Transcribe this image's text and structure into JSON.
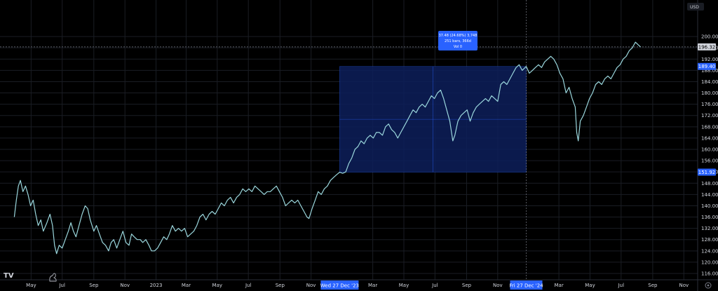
{
  "currency_label": "USD",
  "badges": {
    "last_price": "196.32",
    "range_high": "189.40",
    "range_low": "151.92",
    "range_start_date": "Wed 27 Dec '23",
    "range_end_date": "Fri 27 Dec '24"
  },
  "measure_tooltip": {
    "line1": "37.48 (24.68%) 3,748",
    "line2": "251 bars, 366d",
    "line3": "Vol 0"
  },
  "brand": "TV",
  "colors": {
    "background": "#000000",
    "line": "#9ad6dc",
    "range_fill": "#0d1f5a",
    "accent": "#2962ff",
    "grid": "#1a1d24"
  },
  "chart_data": {
    "type": "line",
    "title": "",
    "xlabel": "",
    "ylabel": "",
    "ylim": [
      116,
      204
    ],
    "yticks": [
      200,
      196,
      192,
      188,
      184,
      180,
      176,
      172,
      168,
      164,
      160,
      156,
      152,
      148,
      144,
      140,
      136,
      132,
      128,
      124,
      120,
      116
    ],
    "xlim": [
      "2022-03-01",
      "2025-12-05"
    ],
    "xticks": [
      {
        "date": "2022-05-01",
        "label": "May"
      },
      {
        "date": "2022-07-01",
        "label": "Jul"
      },
      {
        "date": "2022-09-01",
        "label": "Sep"
      },
      {
        "date": "2022-11-01",
        "label": "Nov"
      },
      {
        "date": "2023-01-01",
        "label": "2023"
      },
      {
        "date": "2023-03-01",
        "label": "Mar"
      },
      {
        "date": "2023-05-01",
        "label": "May"
      },
      {
        "date": "2023-07-01",
        "label": "Jul"
      },
      {
        "date": "2023-09-01",
        "label": "Sep"
      },
      {
        "date": "2023-11-01",
        "label": "Nov"
      },
      {
        "date": "2024-03-01",
        "label": "Mar"
      },
      {
        "date": "2024-05-01",
        "label": "May"
      },
      {
        "date": "2024-07-01",
        "label": "Jul"
      },
      {
        "date": "2024-09-01",
        "label": "Sep"
      },
      {
        "date": "2024-11-01",
        "label": "Nov"
      },
      {
        "date": "2025-03-01",
        "label": "Mar"
      },
      {
        "date": "2025-05-01",
        "label": "May"
      },
      {
        "date": "2025-07-01",
        "label": "Jul"
      },
      {
        "date": "2025-09-01",
        "label": "Sep"
      },
      {
        "date": "2025-11-01",
        "label": "Nov"
      }
    ],
    "range": {
      "start": "2023-12-27",
      "end": "2024-12-27",
      "low": 151.92,
      "high": 189.4
    },
    "crosshair": {
      "date": "2024-12-27",
      "price": 196.32
    },
    "series": [
      {
        "points": [
          [
            "2022-03-29",
            136.0
          ],
          [
            "2022-04-02",
            142.0
          ],
          [
            "2022-04-06",
            147.0
          ],
          [
            "2022-04-10",
            149.0
          ],
          [
            "2022-04-15",
            145.0
          ],
          [
            "2022-04-20",
            147.0
          ],
          [
            "2022-04-25",
            144.0
          ],
          [
            "2022-04-30",
            140.0
          ],
          [
            "2022-05-05",
            142.0
          ],
          [
            "2022-05-10",
            137.0
          ],
          [
            "2022-05-15",
            133.0
          ],
          [
            "2022-05-20",
            135.0
          ],
          [
            "2022-05-25",
            131.0
          ],
          [
            "2022-06-01",
            134.0
          ],
          [
            "2022-06-07",
            137.0
          ],
          [
            "2022-06-12",
            133.0
          ],
          [
            "2022-06-16",
            126.0
          ],
          [
            "2022-06-20",
            123.0
          ],
          [
            "2022-06-25",
            126.0
          ],
          [
            "2022-07-01",
            125.0
          ],
          [
            "2022-07-07",
            128.0
          ],
          [
            "2022-07-13",
            131.0
          ],
          [
            "2022-07-18",
            134.0
          ],
          [
            "2022-07-23",
            131.0
          ],
          [
            "2022-07-28",
            129.0
          ],
          [
            "2022-08-03",
            133.0
          ],
          [
            "2022-08-09",
            137.0
          ],
          [
            "2022-08-15",
            140.0
          ],
          [
            "2022-08-20",
            139.0
          ],
          [
            "2022-08-25",
            135.0
          ],
          [
            "2022-09-01",
            131.0
          ],
          [
            "2022-09-06",
            133.0
          ],
          [
            "2022-09-12",
            130.0
          ],
          [
            "2022-09-18",
            127.0
          ],
          [
            "2022-09-24",
            126.0
          ],
          [
            "2022-09-30",
            124.0
          ],
          [
            "2022-10-05",
            127.0
          ],
          [
            "2022-10-10",
            128.0
          ],
          [
            "2022-10-16",
            125.0
          ],
          [
            "2022-10-22",
            128.0
          ],
          [
            "2022-10-28",
            131.0
          ],
          [
            "2022-11-03",
            127.0
          ],
          [
            "2022-11-09",
            126.0
          ],
          [
            "2022-11-14",
            130.0
          ],
          [
            "2022-11-19",
            129.0
          ],
          [
            "2022-11-25",
            128.0
          ],
          [
            "2022-12-01",
            128.0
          ],
          [
            "2022-12-06",
            127.0
          ],
          [
            "2022-12-12",
            128.0
          ],
          [
            "2022-12-18",
            126.0
          ],
          [
            "2022-12-23",
            124.0
          ],
          [
            "2022-12-29",
            124.0
          ],
          [
            "2023-01-04",
            125.0
          ],
          [
            "2023-01-10",
            127.0
          ],
          [
            "2023-01-16",
            129.0
          ],
          [
            "2023-01-22",
            128.0
          ],
          [
            "2023-01-27",
            130.0
          ],
          [
            "2023-02-02",
            133.0
          ],
          [
            "2023-02-08",
            131.0
          ],
          [
            "2023-02-14",
            132.0
          ],
          [
            "2023-02-20",
            131.0
          ],
          [
            "2023-02-26",
            132.0
          ],
          [
            "2023-03-04",
            129.0
          ],
          [
            "2023-03-10",
            130.0
          ],
          [
            "2023-03-16",
            131.0
          ],
          [
            "2023-03-22",
            133.0
          ],
          [
            "2023-03-28",
            136.0
          ],
          [
            "2023-04-03",
            137.0
          ],
          [
            "2023-04-09",
            135.0
          ],
          [
            "2023-04-15",
            137.0
          ],
          [
            "2023-04-21",
            138.0
          ],
          [
            "2023-04-27",
            137.0
          ],
          [
            "2023-05-03",
            139.0
          ],
          [
            "2023-05-09",
            141.0
          ],
          [
            "2023-05-15",
            140.0
          ],
          [
            "2023-05-21",
            142.0
          ],
          [
            "2023-05-27",
            143.0
          ],
          [
            "2023-06-02",
            141.0
          ],
          [
            "2023-06-08",
            143.0
          ],
          [
            "2023-06-14",
            144.0
          ],
          [
            "2023-06-20",
            146.0
          ],
          [
            "2023-06-26",
            145.0
          ],
          [
            "2023-07-02",
            146.0
          ],
          [
            "2023-07-08",
            145.0
          ],
          [
            "2023-07-14",
            147.0
          ],
          [
            "2023-07-20",
            146.0
          ],
          [
            "2023-07-26",
            145.0
          ],
          [
            "2023-08-01",
            144.0
          ],
          [
            "2023-08-07",
            145.0
          ],
          [
            "2023-08-13",
            145.0
          ],
          [
            "2023-08-19",
            146.0
          ],
          [
            "2023-08-25",
            147.0
          ],
          [
            "2023-08-31",
            145.0
          ],
          [
            "2023-09-06",
            143.0
          ],
          [
            "2023-09-12",
            140.0
          ],
          [
            "2023-09-18",
            141.0
          ],
          [
            "2023-09-24",
            142.0
          ],
          [
            "2023-09-30",
            141.0
          ],
          [
            "2023-10-06",
            142.0
          ],
          [
            "2023-10-12",
            140.0
          ],
          [
            "2023-10-18",
            138.0
          ],
          [
            "2023-10-24",
            136.0
          ],
          [
            "2023-10-28",
            135.5
          ],
          [
            "2023-11-03",
            139.0
          ],
          [
            "2023-11-09",
            142.0
          ],
          [
            "2023-11-15",
            145.0
          ],
          [
            "2023-11-21",
            144.0
          ],
          [
            "2023-11-27",
            146.0
          ],
          [
            "2023-12-03",
            147.0
          ],
          [
            "2023-12-09",
            149.0
          ],
          [
            "2023-12-15",
            150.0
          ],
          [
            "2023-12-21",
            151.0
          ],
          [
            "2023-12-27",
            151.9
          ],
          [
            "2024-01-02",
            151.5
          ],
          [
            "2024-01-08",
            152.0
          ],
          [
            "2024-01-14",
            155.0
          ],
          [
            "2024-01-20",
            157.0
          ],
          [
            "2024-01-26",
            160.0
          ],
          [
            "2024-02-01",
            161.0
          ],
          [
            "2024-02-07",
            163.0
          ],
          [
            "2024-02-13",
            162.0
          ],
          [
            "2024-02-19",
            164.0
          ],
          [
            "2024-02-25",
            165.0
          ],
          [
            "2024-03-02",
            164.0
          ],
          [
            "2024-03-08",
            166.0
          ],
          [
            "2024-03-14",
            166.0
          ],
          [
            "2024-03-20",
            165.0
          ],
          [
            "2024-03-26",
            168.0
          ],
          [
            "2024-04-01",
            169.0
          ],
          [
            "2024-04-07",
            167.0
          ],
          [
            "2024-04-13",
            166.0
          ],
          [
            "2024-04-19",
            164.0
          ],
          [
            "2024-04-25",
            166.0
          ],
          [
            "2024-05-01",
            168.0
          ],
          [
            "2024-05-07",
            170.0
          ],
          [
            "2024-05-13",
            172.0
          ],
          [
            "2024-05-19",
            174.0
          ],
          [
            "2024-05-25",
            173.0
          ],
          [
            "2024-05-31",
            175.0
          ],
          [
            "2024-06-06",
            176.0
          ],
          [
            "2024-06-12",
            175.0
          ],
          [
            "2024-06-18",
            177.0
          ],
          [
            "2024-06-24",
            179.0
          ],
          [
            "2024-06-30",
            178.0
          ],
          [
            "2024-07-06",
            180.0
          ],
          [
            "2024-07-12",
            181.0
          ],
          [
            "2024-07-18",
            178.0
          ],
          [
            "2024-07-24",
            174.0
          ],
          [
            "2024-07-30",
            170.0
          ],
          [
            "2024-08-05",
            163.0
          ],
          [
            "2024-08-09",
            165.0
          ],
          [
            "2024-08-15",
            170.0
          ],
          [
            "2024-08-21",
            172.0
          ],
          [
            "2024-08-27",
            173.0
          ],
          [
            "2024-09-02",
            174.0
          ],
          [
            "2024-09-08",
            170.0
          ],
          [
            "2024-09-14",
            173.0
          ],
          [
            "2024-09-20",
            175.0
          ],
          [
            "2024-09-26",
            176.0
          ],
          [
            "2024-10-02",
            177.0
          ],
          [
            "2024-10-08",
            178.0
          ],
          [
            "2024-10-14",
            177.0
          ],
          [
            "2024-10-20",
            179.0
          ],
          [
            "2024-10-26",
            178.0
          ],
          [
            "2024-11-01",
            177.0
          ],
          [
            "2024-11-07",
            183.0
          ],
          [
            "2024-11-13",
            184.0
          ],
          [
            "2024-11-19",
            183.0
          ],
          [
            "2024-11-25",
            185.0
          ],
          [
            "2024-12-01",
            187.0
          ],
          [
            "2024-12-07",
            189.0
          ],
          [
            "2024-12-13",
            190.0
          ],
          [
            "2024-12-19",
            188.0
          ],
          [
            "2024-12-27",
            189.4
          ],
          [
            "2025-01-02",
            187.0
          ],
          [
            "2025-01-08",
            188.0
          ],
          [
            "2025-01-14",
            189.0
          ],
          [
            "2025-01-20",
            190.0
          ],
          [
            "2025-01-26",
            189.0
          ],
          [
            "2025-02-01",
            191.0
          ],
          [
            "2025-02-07",
            192.0
          ],
          [
            "2025-02-13",
            193.0
          ],
          [
            "2025-02-19",
            192.0
          ],
          [
            "2025-02-25",
            190.0
          ],
          [
            "2025-03-03",
            187.0
          ],
          [
            "2025-03-09",
            185.0
          ],
          [
            "2025-03-15",
            180.0
          ],
          [
            "2025-03-21",
            182.0
          ],
          [
            "2025-03-27",
            178.0
          ],
          [
            "2025-04-02",
            175.0
          ],
          [
            "2025-04-05",
            166.0
          ],
          [
            "2025-04-08",
            163.0
          ],
          [
            "2025-04-12",
            170.0
          ],
          [
            "2025-04-18",
            172.0
          ],
          [
            "2025-04-24",
            175.0
          ],
          [
            "2025-04-30",
            178.0
          ],
          [
            "2025-05-06",
            180.0
          ],
          [
            "2025-05-12",
            183.0
          ],
          [
            "2025-05-18",
            184.0
          ],
          [
            "2025-05-24",
            183.0
          ],
          [
            "2025-05-30",
            185.0
          ],
          [
            "2025-06-05",
            186.0
          ],
          [
            "2025-06-11",
            185.0
          ],
          [
            "2025-06-17",
            187.0
          ],
          [
            "2025-06-23",
            189.0
          ],
          [
            "2025-06-29",
            190.0
          ],
          [
            "2025-07-05",
            192.0
          ],
          [
            "2025-07-11",
            193.0
          ],
          [
            "2025-07-17",
            195.0
          ],
          [
            "2025-07-23",
            196.0
          ],
          [
            "2025-07-29",
            198.0
          ],
          [
            "2025-08-04",
            197.0
          ],
          [
            "2025-08-08",
            196.32
          ]
        ]
      }
    ]
  }
}
